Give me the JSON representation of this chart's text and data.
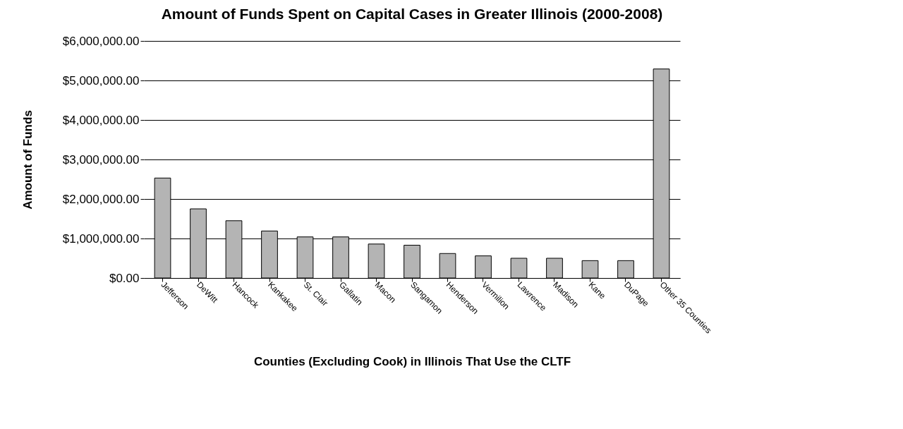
{
  "chart_data": {
    "type": "bar",
    "title": "Amount of Funds Spent on Capital Cases in Greater Illinois (2000-2008)",
    "xlabel": "Counties (Excluding Cook) in Illinois That Use the CLTF",
    "ylabel": "Amount of Funds",
    "categories": [
      "Jefferson",
      "DeWitt",
      "Hancock",
      "Kankakee",
      "St. Clair",
      "Gallatin",
      "Macon",
      "Sangamon",
      "Henderson",
      "Vermilion",
      "Lawrence",
      "Madison",
      "Kane",
      "DuPage",
      "Other 35 Counties"
    ],
    "values": [
      2530000,
      1750000,
      1450000,
      1190000,
      1040000,
      1040000,
      860000,
      830000,
      620000,
      560000,
      500000,
      500000,
      440000,
      440000,
      5290000
    ],
    "color": "#b4b4b4",
    "ylim": [
      0,
      6000000
    ],
    "yticks": [
      {
        "value": 0,
        "label": "$0.00"
      },
      {
        "value": 1000000,
        "label": "$1,000,000.00"
      },
      {
        "value": 2000000,
        "label": "$2,000,000.00"
      },
      {
        "value": 3000000,
        "label": "$3,000,000.00"
      },
      {
        "value": 4000000,
        "label": "$4,000,000.00"
      },
      {
        "value": 5000000,
        "label": "$5,000,000.00"
      },
      {
        "value": 6000000,
        "label": "$6,000,000.00"
      }
    ],
    "grid": "y"
  }
}
